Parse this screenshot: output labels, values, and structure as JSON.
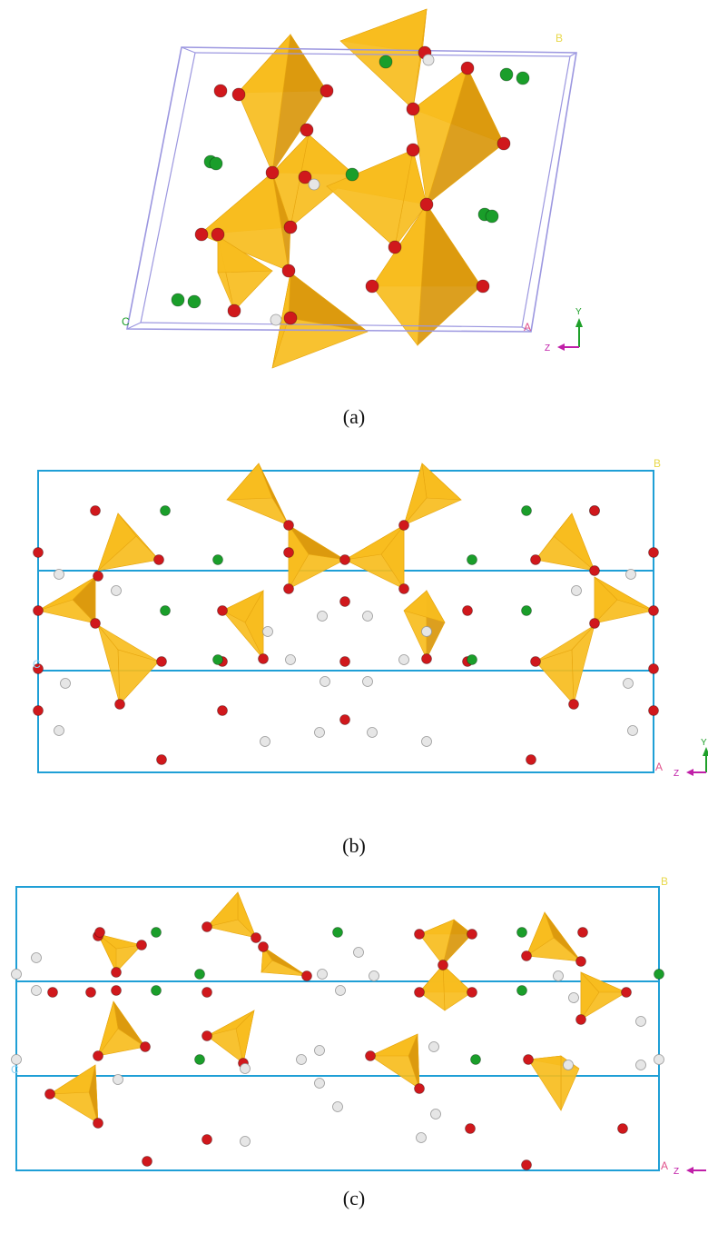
{
  "panels": [
    {
      "caption": "(a)",
      "corner_labels": {
        "b": "B",
        "c": "C",
        "a": "A"
      },
      "triad": {
        "y": "Y",
        "z": "Z"
      }
    },
    {
      "caption": "(b)",
      "corner_labels": {
        "b": "B",
        "c": "C",
        "a": "A"
      },
      "triad": {
        "y": "Y",
        "z": "Z"
      }
    },
    {
      "caption": "(c)",
      "corner_labels": {
        "b": "B",
        "c": "C",
        "a": "A"
      },
      "triad": {
        "y": "Y",
        "z": "Z"
      }
    }
  ],
  "colors": {
    "cell_a": "#9c97e0",
    "cell_bc": "#1f9fd6",
    "tetrahedron": "#f7bd1e",
    "tetrahedron_dark": "#d9970c",
    "oxygen": "#d0181c",
    "chlorine": "#1a9e2a",
    "hydrogen": "#e6e6e6",
    "label_yellow": "#e8d84a",
    "label_pink": "#e0508a",
    "axis_green": "#1fa02a",
    "axis_magenta": "#c01fa8"
  }
}
